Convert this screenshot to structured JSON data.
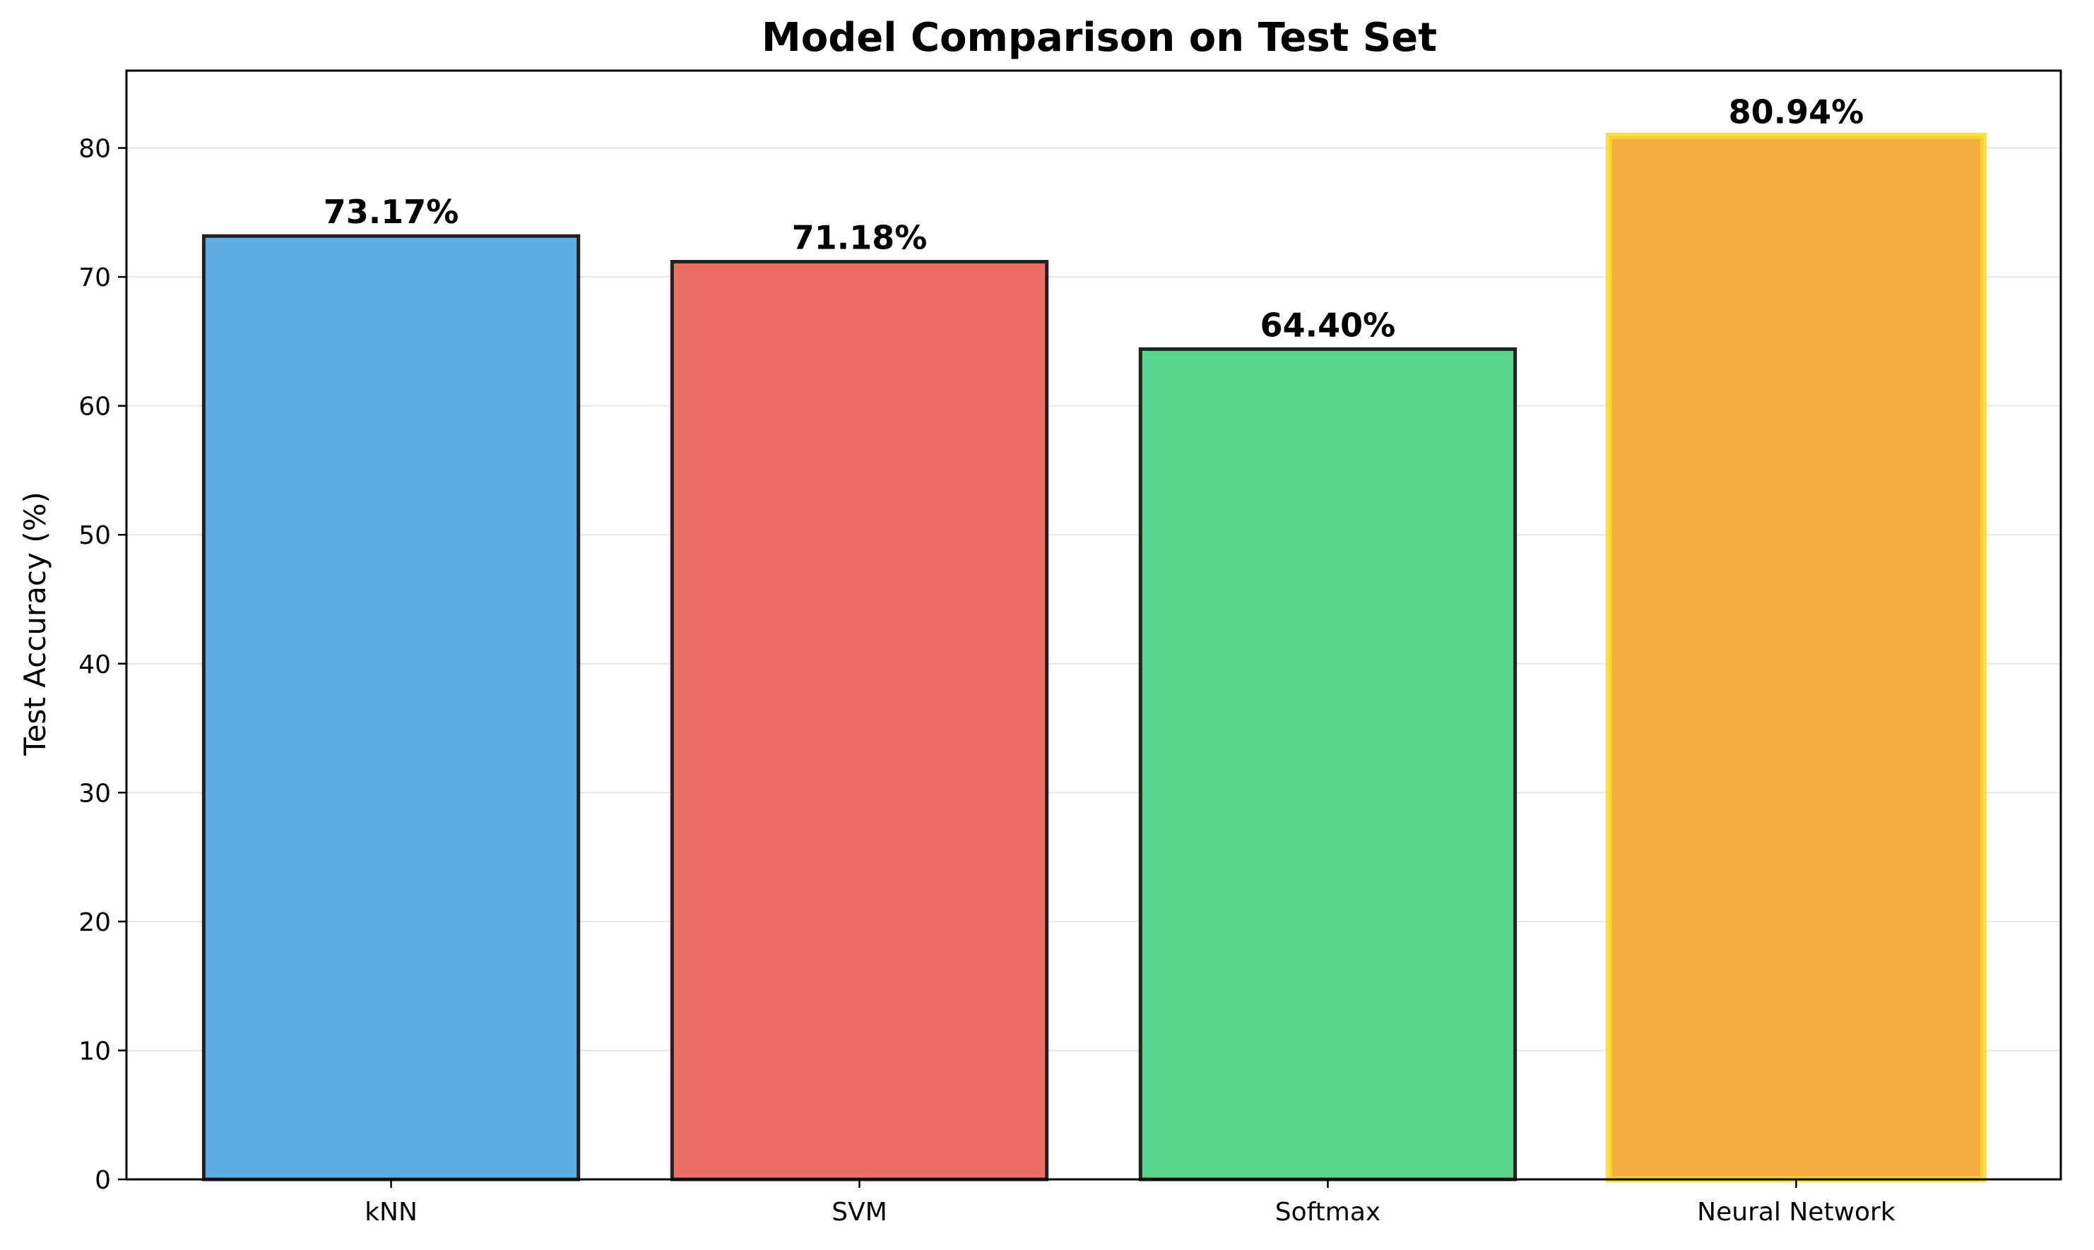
{
  "chart_data": {
    "type": "bar",
    "title": "Model Comparison on Test Set",
    "xlabel": "",
    "ylabel": "Test Accuracy (%)",
    "categories": [
      "kNN",
      "SVM",
      "Softmax",
      "Neural Network"
    ],
    "values": [
      73.17,
      71.18,
      64.4,
      80.94
    ],
    "data_labels": [
      "73.17%",
      "71.18%",
      "64.40%",
      "80.94%"
    ],
    "colors": [
      "#5dade2",
      "#ec7063",
      "#58d68d",
      "#f5b041"
    ],
    "edge_colors": [
      "#222222",
      "#222222",
      "#222222",
      "#f7dc2a"
    ],
    "highlight": "Neural Network",
    "ylim": [
      0,
      86
    ],
    "yticks": [
      0,
      10,
      20,
      30,
      40,
      50,
      60,
      70,
      80
    ],
    "grid": "y",
    "grid_color": "#e6e6e6",
    "legend": "none"
  }
}
